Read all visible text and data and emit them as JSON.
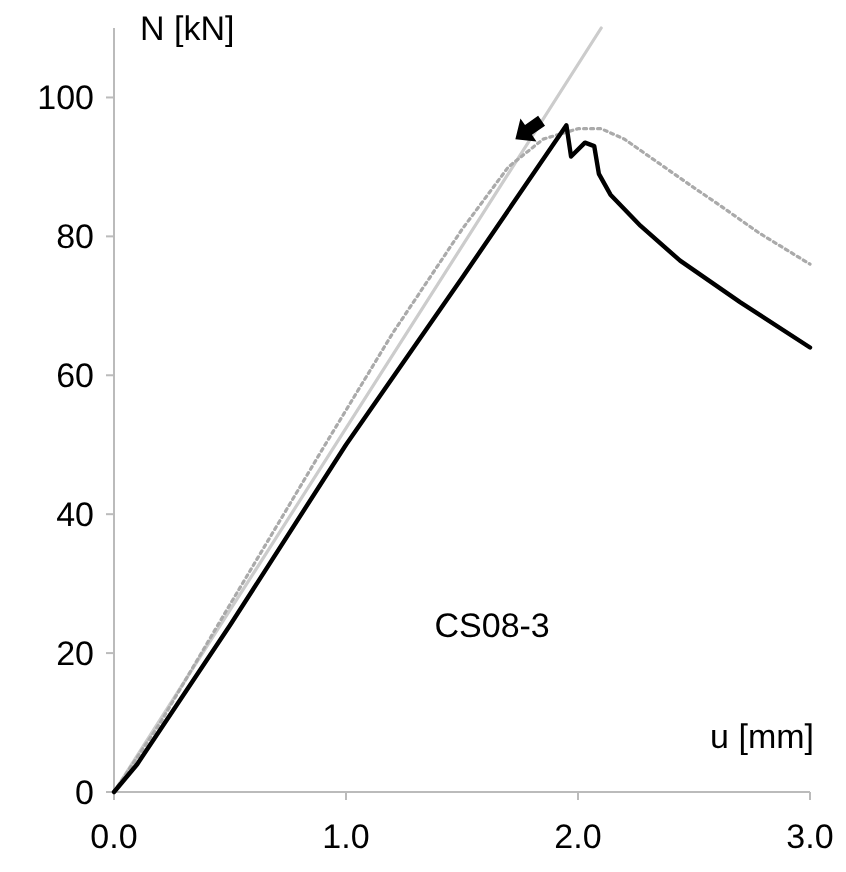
{
  "chart_data": {
    "type": "line",
    "xlabel": "u [mm]",
    "ylabel": "N [kN]",
    "annotations": [
      "CS08-3"
    ],
    "xlim": [
      0,
      3
    ],
    "ylim": [
      0,
      110
    ],
    "xticks": [
      {
        "value": 0,
        "label": "0.0"
      },
      {
        "value": 1,
        "label": "1.0"
      },
      {
        "value": 2,
        "label": "2.0"
      },
      {
        "value": 3,
        "label": "3.0"
      }
    ],
    "yticks": [
      0,
      20,
      40,
      60,
      80,
      100
    ],
    "grid": false,
    "series": [
      {
        "color": "#cccccc",
        "line_style": "solid",
        "x": [
          0,
          2.1
        ],
        "values": [
          0,
          110
        ]
      },
      {
        "color": "#aaaaaa",
        "line_style": "dotted",
        "x": [
          0,
          0.2,
          0.5,
          0.91,
          1.2,
          1.5,
          1.7,
          1.85,
          2.0,
          2.1,
          2.2,
          2.35,
          2.5,
          2.61,
          2.78,
          3.0
        ],
        "values": [
          0,
          10,
          27,
          50,
          66,
          81,
          90,
          94,
          95.5,
          95.5,
          94,
          90.5,
          87,
          84.5,
          80.5,
          76
        ]
      },
      {
        "color": "#000000",
        "line_style": "solid",
        "x": [
          0,
          0.1,
          0.5,
          1.0,
          1.5,
          1.95,
          1.97,
          2.03,
          2.07,
          2.09,
          2.14,
          2.27,
          2.44,
          2.7,
          3.0
        ],
        "values": [
          0,
          4,
          24,
          50,
          74,
          96,
          91.5,
          93.5,
          93,
          89,
          86,
          81.5,
          76.5,
          70.5,
          64
        ]
      }
    ]
  }
}
